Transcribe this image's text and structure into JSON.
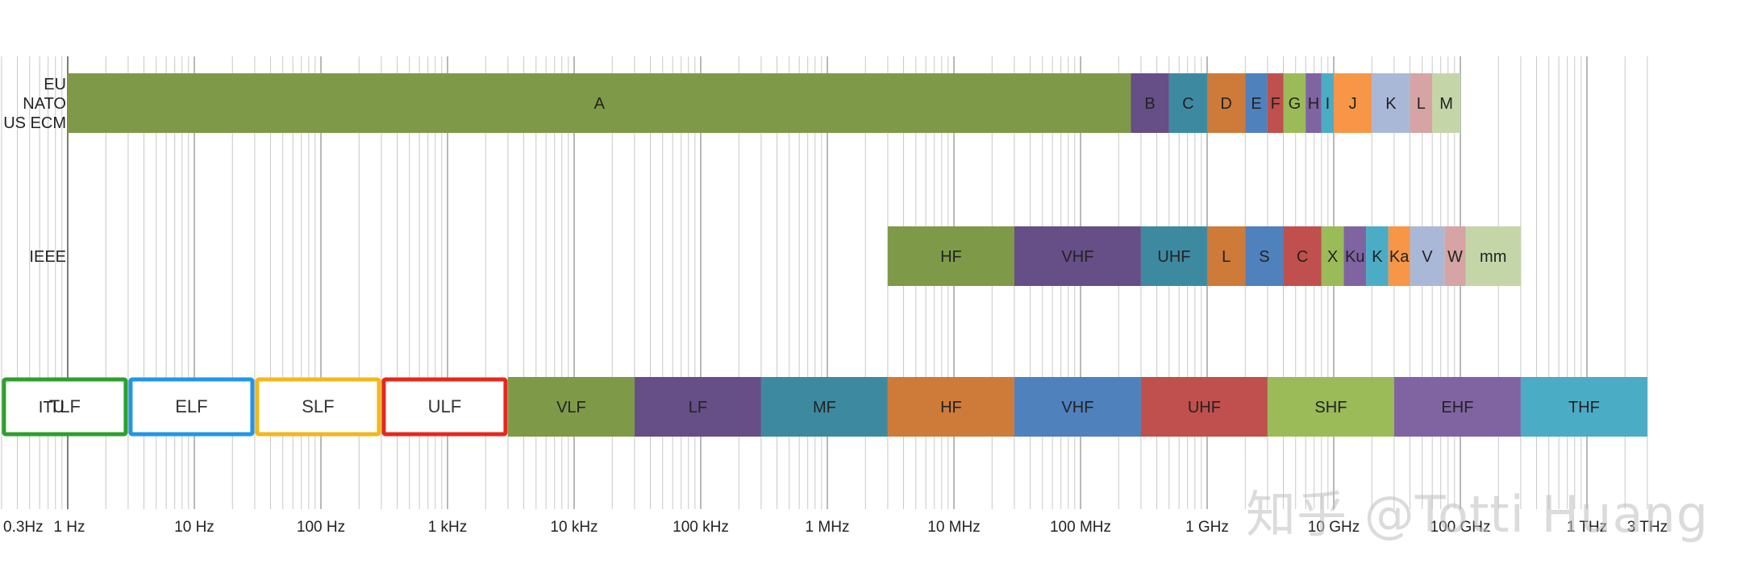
{
  "chart_data": {
    "type": "bar",
    "orientation": "horizontal",
    "x_scale": "log",
    "x_range_hz": [
      0.3,
      3000000000000
    ],
    "grid": true,
    "x_tick_labels": [
      {
        "label": "0.3Hz",
        "hz": 0.3
      },
      {
        "label": "1 Hz",
        "hz": 1
      },
      {
        "label": "10 Hz",
        "hz": 10
      },
      {
        "label": "100 Hz",
        "hz": 100
      },
      {
        "label": "1 kHz",
        "hz": 1000
      },
      {
        "label": "10 kHz",
        "hz": 10000
      },
      {
        "label": "100 kHz",
        "hz": 100000
      },
      {
        "label": "1 MHz",
        "hz": 1000000
      },
      {
        "label": "10 MHz",
        "hz": 10000000
      },
      {
        "label": "100 MHz",
        "hz": 100000000
      },
      {
        "label": "1 GHz",
        "hz": 1000000000
      },
      {
        "label": "10 GHz",
        "hz": 10000000000
      },
      {
        "label": "100 GHz",
        "hz": 100000000000
      },
      {
        "label": "1 THz",
        "hz": 1000000000000
      },
      {
        "label": "3 THz",
        "hz": 3000000000000
      }
    ],
    "rows": [
      {
        "label_lines": [
          "EU",
          "NATO",
          "US ECM"
        ],
        "bands": [
          {
            "label": "A",
            "start_hz": 1,
            "end_hz": 250000000,
            "color": "#7e9a48"
          },
          {
            "label": "B",
            "start_hz": 250000000,
            "end_hz": 500000000,
            "color": "#664e86"
          },
          {
            "label": "C",
            "start_hz": 500000000,
            "end_hz": 1000000000,
            "color": "#3d8aa0"
          },
          {
            "label": "D",
            "start_hz": 1000000000,
            "end_hz": 2000000000,
            "color": "#ce7b3a"
          },
          {
            "label": "E",
            "start_hz": 2000000000,
            "end_hz": 3000000000,
            "color": "#4f81bd"
          },
          {
            "label": "F",
            "start_hz": 3000000000,
            "end_hz": 4000000000,
            "color": "#c0504d"
          },
          {
            "label": "G",
            "start_hz": 4000000000,
            "end_hz": 6000000000,
            "color": "#9bbb59"
          },
          {
            "label": "H",
            "start_hz": 6000000000,
            "end_hz": 8000000000,
            "color": "#8064a2"
          },
          {
            "label": "I",
            "start_hz": 8000000000,
            "end_hz": 10000000000,
            "color": "#4bacc6"
          },
          {
            "label": "J",
            "start_hz": 10000000000,
            "end_hz": 20000000000,
            "color": "#f79646"
          },
          {
            "label": "K",
            "start_hz": 20000000000,
            "end_hz": 40000000000,
            "color": "#aab8d8"
          },
          {
            "label": "L",
            "start_hz": 40000000000,
            "end_hz": 60000000000,
            "color": "#d6a4a4"
          },
          {
            "label": "M",
            "start_hz": 60000000000,
            "end_hz": 100000000000,
            "color": "#c4d6a8"
          }
        ]
      },
      {
        "label_lines": [
          "IEEE"
        ],
        "bands": [
          {
            "label": "HF",
            "start_hz": 3000000,
            "end_hz": 30000000,
            "color": "#7e9a48"
          },
          {
            "label": "VHF",
            "start_hz": 30000000,
            "end_hz": 300000000,
            "color": "#664e86"
          },
          {
            "label": "UHF",
            "start_hz": 300000000,
            "end_hz": 1000000000,
            "color": "#3d8aa0"
          },
          {
            "label": "L",
            "start_hz": 1000000000,
            "end_hz": 2000000000,
            "color": "#ce7b3a"
          },
          {
            "label": "S",
            "start_hz": 2000000000,
            "end_hz": 4000000000,
            "color": "#4f81bd"
          },
          {
            "label": "C",
            "start_hz": 4000000000,
            "end_hz": 8000000000,
            "color": "#c0504d"
          },
          {
            "label": "X",
            "start_hz": 8000000000,
            "end_hz": 12000000000,
            "color": "#9bbb59"
          },
          {
            "label": "Ku",
            "start_hz": 12000000000,
            "end_hz": 18000000000,
            "color": "#8064a2"
          },
          {
            "label": "K",
            "start_hz": 18000000000,
            "end_hz": 27000000000,
            "color": "#4bacc6"
          },
          {
            "label": "Ka",
            "start_hz": 27000000000,
            "end_hz": 40000000000,
            "color": "#f79646"
          },
          {
            "label": "V",
            "start_hz": 40000000000,
            "end_hz": 75000000000,
            "color": "#aab8d8"
          },
          {
            "label": "W",
            "start_hz": 75000000000,
            "end_hz": 110000000000,
            "color": "#d6a4a4"
          },
          {
            "label": "mm",
            "start_hz": 110000000000,
            "end_hz": 300000000000,
            "color": "#c4d6a8"
          }
        ]
      },
      {
        "label_lines": [
          "ITU"
        ],
        "bands": [
          {
            "label": "TLF",
            "start_hz": 0.3,
            "end_hz": 3,
            "color": "#ffffff",
            "outline": "#2ca02c"
          },
          {
            "label": "ELF",
            "start_hz": 3,
            "end_hz": 30,
            "color": "#ffffff",
            "outline": "#2196e8"
          },
          {
            "label": "SLF",
            "start_hz": 30,
            "end_hz": 300,
            "color": "#ffffff",
            "outline": "#f2b81b"
          },
          {
            "label": "ULF",
            "start_hz": 300,
            "end_hz": 3000,
            "color": "#ffffff",
            "outline": "#e8261c"
          },
          {
            "label": "VLF",
            "start_hz": 3000,
            "end_hz": 30000,
            "color": "#7e9a48"
          },
          {
            "label": "LF",
            "start_hz": 30000,
            "end_hz": 300000,
            "color": "#664e86"
          },
          {
            "label": "MF",
            "start_hz": 300000,
            "end_hz": 3000000,
            "color": "#3d8aa0"
          },
          {
            "label": "HF",
            "start_hz": 3000000,
            "end_hz": 30000000,
            "color": "#ce7b3a"
          },
          {
            "label": "VHF",
            "start_hz": 30000000,
            "end_hz": 300000000,
            "color": "#4f81bd"
          },
          {
            "label": "UHF",
            "start_hz": 300000000,
            "end_hz": 3000000000,
            "color": "#c0504d"
          },
          {
            "label": "SHF",
            "start_hz": 3000000000,
            "end_hz": 30000000000,
            "color": "#9bbb59"
          },
          {
            "label": "EHF",
            "start_hz": 30000000000,
            "end_hz": 300000000000,
            "color": "#8064a2"
          },
          {
            "label": "THF",
            "start_hz": 300000000000,
            "end_hz": 3000000000000,
            "color": "#4bacc6"
          }
        ]
      }
    ]
  },
  "watermark": "知乎 @Totti Huang"
}
